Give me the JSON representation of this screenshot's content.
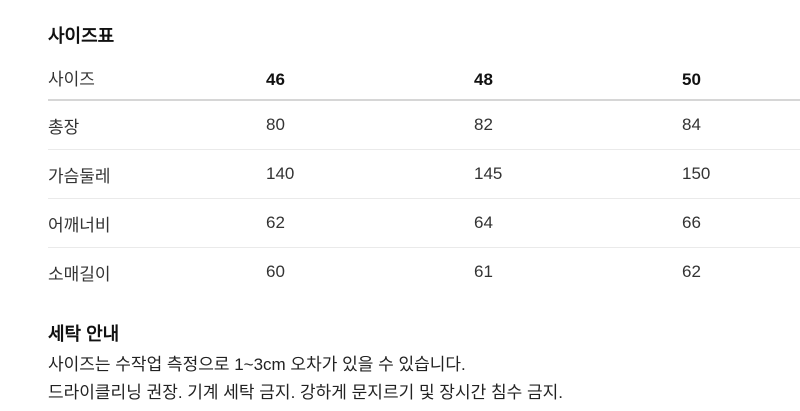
{
  "size_table": {
    "title": "사이즈표",
    "header": [
      "사이즈",
      "46",
      "48",
      "50"
    ],
    "rows": [
      {
        "label": "총장",
        "values": [
          "80",
          "82",
          "84"
        ]
      },
      {
        "label": "가슴둘레",
        "values": [
          "140",
          "145",
          "150"
        ]
      },
      {
        "label": "어깨너비",
        "values": [
          "62",
          "64",
          "66"
        ]
      },
      {
        "label": "소매길이",
        "values": [
          "60",
          "61",
          "62"
        ]
      }
    ]
  },
  "care": {
    "title": "세탁 안내",
    "lines": [
      "사이즈는 수작업 측정으로 1~3cm 오차가 있을 수 있습니다.",
      "드라이클리닝 권장. 기계 세탁 금지. 강하게 문지르기 및 장시간 침수 금지."
    ]
  },
  "colors": {
    "heading_text": "#111111",
    "table_text": "#333333",
    "body_text": "#222222",
    "header_rule": "#d6d6d6",
    "row_rule": "#eaeaea",
    "background": "#ffffff"
  }
}
